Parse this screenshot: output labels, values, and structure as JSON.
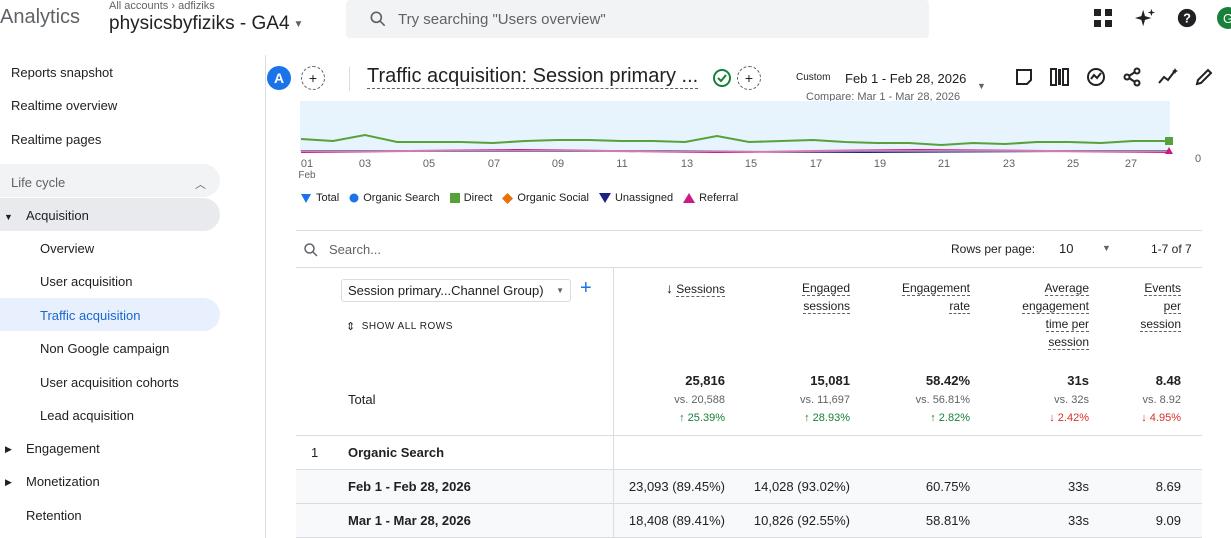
{
  "app": {
    "brand": "Analytics",
    "account_path": "All accounts › adfiziks",
    "property": "physicsbyfiziks - GA4",
    "search_placeholder": "Try searching \"Users overview\"",
    "avatar_letter": "G"
  },
  "sidebar": {
    "items": [
      {
        "label": "Reports snapshot"
      },
      {
        "label": "Realtime overview"
      },
      {
        "label": "Realtime pages"
      }
    ],
    "section": "Life cycle",
    "acquisition": "Acquisition",
    "acquisition_items": [
      {
        "label": "Overview"
      },
      {
        "label": "User acquisition"
      },
      {
        "label": "Traffic acquisition"
      },
      {
        "label": "Non Google campaign"
      },
      {
        "label": "User acquisition cohorts"
      },
      {
        "label": "Lead acquisition"
      }
    ],
    "engagement": "Engagement",
    "monetization": "Monetization",
    "retention": "Retention"
  },
  "report": {
    "avatar": "A",
    "title": "Traffic acquisition: Session primary ...",
    "custom_label": "Custom",
    "date_range": "Feb 1 - Feb 28, 2026",
    "compare": "Compare: Mar 1 - Mar 28, 2026"
  },
  "chart_data": {
    "type": "line",
    "x_ticks": [
      "01",
      "03",
      "05",
      "07",
      "09",
      "11",
      "13",
      "15",
      "17",
      "19",
      "21",
      "23",
      "25",
      "27"
    ],
    "x_month": "Feb",
    "y_tick": "0",
    "series": [
      {
        "name": "Total",
        "color": "#1a73e8"
      },
      {
        "name": "Organic Search",
        "color": "#1a73e8"
      },
      {
        "name": "Direct",
        "color": "#57a13b"
      },
      {
        "name": "Organic Social",
        "color": "#e8710a"
      },
      {
        "name": "Unassigned",
        "color": "#1a237e"
      },
      {
        "name": "Referral",
        "color": "#d01884"
      }
    ]
  },
  "table": {
    "search_placeholder": "Search...",
    "rows_per_page_label": "Rows per page:",
    "rows_per_page": "10",
    "pager": "1-7 of 7",
    "dimension": "Session primary...Channel Group)",
    "show_all": "SHOW ALL ROWS",
    "headers": {
      "sessions": "Sessions",
      "engaged_1": "Engaged",
      "engaged_2": "sessions",
      "rate_1": "Engagement",
      "rate_2": "rate",
      "avg_1": "Average",
      "avg_2": "engagement",
      "avg_3": "time per",
      "avg_4": "session",
      "ev_1": "Events",
      "ev_2": "per",
      "ev_3": "session"
    },
    "total_label": "Total",
    "totals": {
      "sessions": "25,816",
      "sessions_vs": "vs. 20,588",
      "sessions_pct": "↑ 25.39%",
      "engaged": "15,081",
      "engaged_vs": "vs. 11,697",
      "engaged_pct": "↑ 28.93%",
      "rate": "58.42%",
      "rate_vs": "vs. 56.81%",
      "rate_pct": "↑ 2.82%",
      "avg": "31s",
      "avg_vs": "vs. 32s",
      "avg_pct": "↓ 2.42%",
      "events": "8.48",
      "events_vs": "vs. 8.92",
      "events_pct": "↓ 4.95%"
    },
    "rows": [
      {
        "num": "1",
        "label": "Organic Search"
      },
      {
        "label": "Feb 1 - Feb 28, 2026",
        "sessions": "23,093 (89.45%)",
        "engaged": "14,028 (93.02%)",
        "rate": "60.75%",
        "avg": "33s",
        "events": "8.69"
      },
      {
        "label": "Mar 1 - Mar 28, 2026",
        "sessions": "18,408 (89.41%)",
        "engaged": "10,826 (92.55%)",
        "rate": "58.81%",
        "avg": "33s",
        "events": "9.09"
      }
    ]
  }
}
